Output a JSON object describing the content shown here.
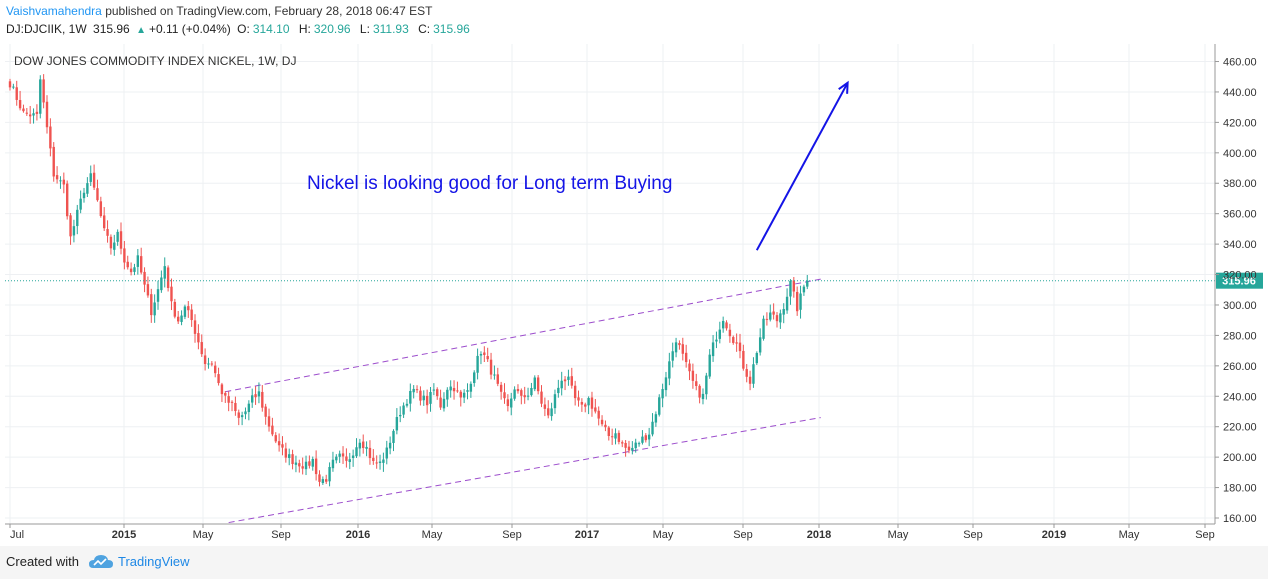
{
  "header": {
    "author": "Vaishvamahendra",
    "published_text": "published on TradingView.com, February 28, 2018 06:47 EST",
    "symbol": "DJ:DJCIIK, 1W",
    "last": "315.96",
    "change": "+0.11 (+0.04%)",
    "open_label": "O:",
    "open": "314.10",
    "high_label": "H:",
    "high": "320.96",
    "low_label": "L:",
    "low": "311.93",
    "close_label": "C:",
    "close": "315.96"
  },
  "footer": {
    "created_with": "Created with",
    "brand": "TradingView"
  },
  "colors": {
    "up": "#26a69a",
    "down": "#ef5350",
    "channel": "#9c4dcc",
    "annotation": "#1414e6",
    "price_line": "#26a69a"
  },
  "chart_data": {
    "type": "candlestick",
    "title": "DOW JONES COMMODITY INDEX NICKEL, 1W, DJ",
    "annotation": "Nickel is looking good for Long term Buying",
    "last_price_label": "315.96",
    "y_ticks": [
      "160.00",
      "180.00",
      "200.00",
      "220.00",
      "240.00",
      "260.00",
      "280.00",
      "300.00",
      "320.00",
      "340.00",
      "360.00",
      "380.00",
      "400.00",
      "420.00",
      "440.00",
      "460.00"
    ],
    "x_ticks": [
      "Jul",
      "2015",
      "May",
      "Sep",
      "2016",
      "May",
      "Sep",
      "2017",
      "May",
      "Sep",
      "2018",
      "May",
      "Sep",
      "2019",
      "May",
      "Sep"
    ],
    "ylim": [
      155,
      468
    ],
    "price_anchors": [
      [
        0,
        446
      ],
      [
        4,
        426
      ],
      [
        8,
        424
      ],
      [
        9,
        448
      ],
      [
        11,
        416
      ],
      [
        13,
        386
      ],
      [
        16,
        378
      ],
      [
        18,
        344
      ],
      [
        20,
        360
      ],
      [
        22,
        376
      ],
      [
        24,
        384
      ],
      [
        26,
        368
      ],
      [
        28,
        348
      ],
      [
        30,
        338
      ],
      [
        32,
        346
      ],
      [
        34,
        330
      ],
      [
        36,
        322
      ],
      [
        38,
        330
      ],
      [
        40,
        312
      ],
      [
        42,
        296
      ],
      [
        44,
        310
      ],
      [
        46,
        326
      ],
      [
        48,
        300
      ],
      [
        50,
        290
      ],
      [
        52,
        298
      ],
      [
        54,
        290
      ],
      [
        56,
        276
      ],
      [
        58,
        262
      ],
      [
        60,
        262
      ],
      [
        62,
        248
      ],
      [
        64,
        238
      ],
      [
        66,
        234
      ],
      [
        68,
        225
      ],
      [
        70,
        230
      ],
      [
        72,
        238
      ],
      [
        74,
        242
      ],
      [
        76,
        226
      ],
      [
        78,
        216
      ],
      [
        80,
        206
      ],
      [
        82,
        202
      ],
      [
        84,
        198
      ],
      [
        86,
        196
      ],
      [
        88,
        194
      ],
      [
        90,
        198
      ],
      [
        92,
        184
      ],
      [
        94,
        186
      ],
      [
        96,
        196
      ],
      [
        98,
        200
      ],
      [
        100,
        196
      ],
      [
        102,
        204
      ],
      [
        104,
        212
      ],
      [
        106,
        206
      ],
      [
        108,
        196
      ],
      [
        110,
        196
      ],
      [
        112,
        204
      ],
      [
        114,
        218
      ],
      [
        116,
        230
      ],
      [
        118,
        238
      ],
      [
        120,
        244
      ],
      [
        122,
        240
      ],
      [
        124,
        236
      ],
      [
        126,
        244
      ],
      [
        128,
        234
      ],
      [
        130,
        246
      ],
      [
        132,
        246
      ],
      [
        134,
        238
      ],
      [
        136,
        244
      ],
      [
        138,
        258
      ],
      [
        140,
        270
      ],
      [
        142,
        262
      ],
      [
        144,
        252
      ],
      [
        146,
        240
      ],
      [
        148,
        232
      ],
      [
        150,
        246
      ],
      [
        152,
        238
      ],
      [
        154,
        242
      ],
      [
        156,
        250
      ],
      [
        158,
        236
      ],
      [
        160,
        226
      ],
      [
        162,
        240
      ],
      [
        164,
        252
      ],
      [
        166,
        250
      ],
      [
        168,
        238
      ],
      [
        170,
        232
      ],
      [
        172,
        238
      ],
      [
        174,
        230
      ],
      [
        176,
        220
      ],
      [
        178,
        214
      ],
      [
        180,
        216
      ],
      [
        182,
        208
      ],
      [
        184,
        204
      ],
      [
        186,
        208
      ],
      [
        188,
        212
      ],
      [
        190,
        216
      ],
      [
        192,
        230
      ],
      [
        194,
        246
      ],
      [
        196,
        262
      ],
      [
        198,
        278
      ],
      [
        200,
        266
      ],
      [
        202,
        254
      ],
      [
        204,
        244
      ],
      [
        206,
        240
      ],
      [
        208,
        266
      ],
      [
        210,
        280
      ],
      [
        212,
        292
      ],
      [
        214,
        282
      ],
      [
        216,
        274
      ],
      [
        218,
        260
      ],
      [
        220,
        250
      ],
      [
        222,
        270
      ],
      [
        224,
        288
      ],
      [
        226,
        294
      ],
      [
        228,
        290
      ],
      [
        230,
        300
      ],
      [
        232,
        314
      ],
      [
        234,
        298
      ],
      [
        236,
        312
      ],
      [
        237,
        316
      ]
    ],
    "channel_upper": {
      "from": [
        64,
        243
      ],
      "to": [
        241,
        317
      ]
    },
    "channel_lower": {
      "from": [
        65,
        157
      ],
      "to": [
        241,
        226
      ]
    },
    "arrow": {
      "from": [
        222,
        336
      ],
      "to": [
        249,
        446
      ]
    }
  }
}
